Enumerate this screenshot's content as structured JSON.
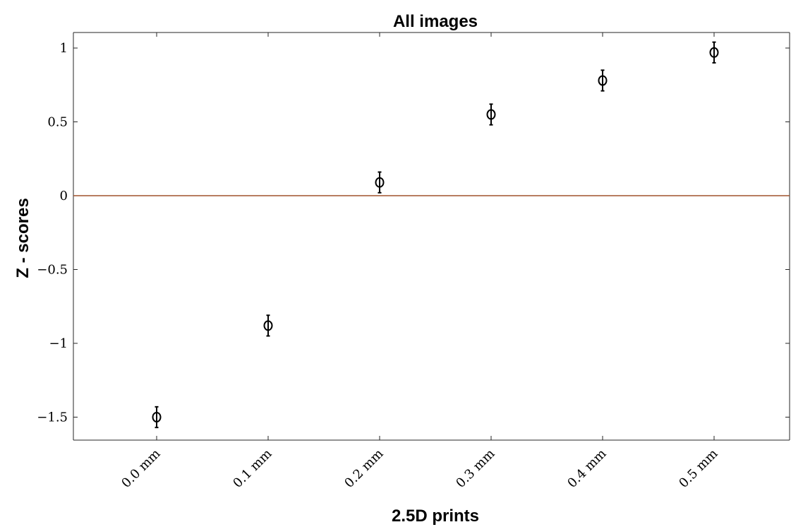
{
  "chart_data": {
    "type": "scatter",
    "title": "All images",
    "xlabel": "2.5D prints",
    "ylabel": "Z - scores",
    "categories": [
      "0.0 mm",
      "0.1 mm",
      "0.2 mm",
      "0.3 mm",
      "0.4 mm",
      "0.5 mm"
    ],
    "y_ticks": [
      {
        "value": 1,
        "label": "1"
      },
      {
        "value": 0.5,
        "label": "0.5"
      },
      {
        "value": 0,
        "label": "0"
      },
      {
        "value": -0.5,
        "label": "−0.5"
      },
      {
        "value": -1,
        "label": "−1"
      },
      {
        "value": -1.5,
        "label": "−1.5"
      }
    ],
    "ylim": [
      -1.65,
      1.1
    ],
    "series": [
      {
        "values": [
          -1.5,
          -0.88,
          0.09,
          0.55,
          0.78,
          0.97
        ],
        "error": [
          0.07,
          0.07,
          0.07,
          0.07,
          0.07,
          0.07
        ]
      }
    ],
    "reference_line": {
      "y": 0,
      "color": "#a0522d"
    },
    "marker": "open-circle",
    "marker_color": "#000000",
    "grid": false
  }
}
